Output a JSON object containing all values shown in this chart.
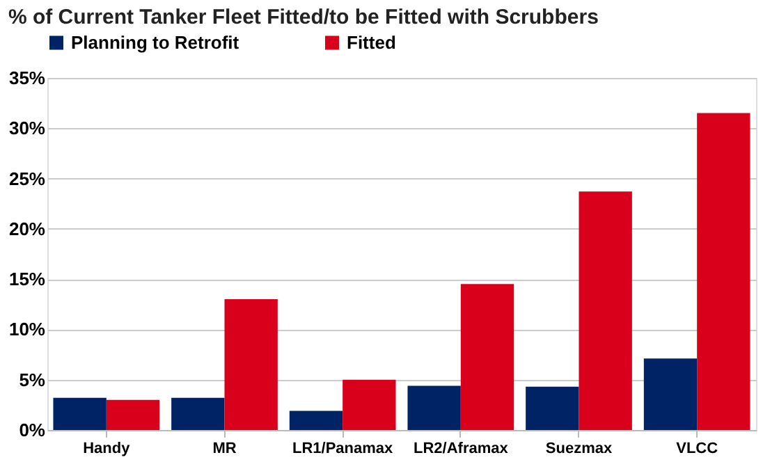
{
  "chart_data": {
    "type": "bar",
    "title": "% of Current Tanker Fleet Fitted/to be Fitted with Scrubbers",
    "categories": [
      "Handy",
      "MR",
      "LR1/Panamax",
      "LR2/Aframax",
      "Suezmax",
      "VLCC"
    ],
    "series": [
      {
        "name": "Planning to Retrofit",
        "color": "#002366",
        "values": [
          3.2,
          3.2,
          1.9,
          4.4,
          4.3,
          7.1
        ]
      },
      {
        "name": "Fitted",
        "color": "#d9001b",
        "values": [
          3.0,
          13.0,
          5.0,
          14.5,
          23.7,
          31.5
        ]
      }
    ],
    "ylim": [
      0,
      35
    ],
    "yticks": [
      {
        "value": 0,
        "label": "0%"
      },
      {
        "value": 5,
        "label": "5%"
      },
      {
        "value": 10,
        "label": "10%"
      },
      {
        "value": 15,
        "label": "15%"
      },
      {
        "value": 20,
        "label": "20%"
      },
      {
        "value": 25,
        "label": "25%"
      },
      {
        "value": 30,
        "label": "30%"
      },
      {
        "value": 35,
        "label": "35%"
      }
    ],
    "grid": "y",
    "legend": "top"
  }
}
